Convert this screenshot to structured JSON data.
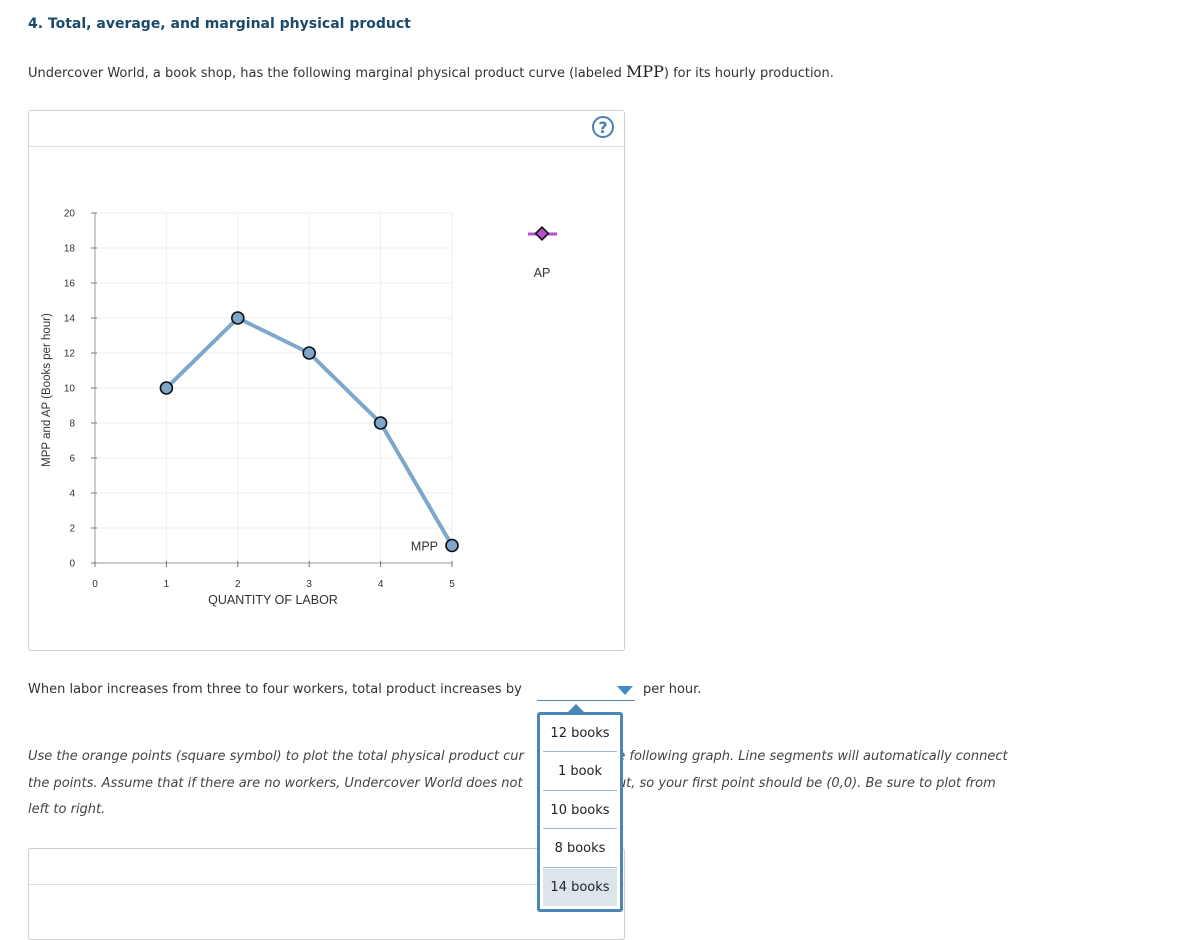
{
  "question": {
    "title": "4. Total, average, and marginal physical product",
    "intro_before": "Undercover World, a book shop, has the following marginal physical product curve (labeled ",
    "intro_symbol": "MPP",
    "intro_after": ") for its hourly production."
  },
  "graph": {
    "help_label": "?",
    "legend_label": "AP",
    "colors": {
      "mpp_line": "#7ea7cc",
      "mpp_point": "#7ea7cc",
      "ap_marker": "#b64fcf"
    }
  },
  "chart_data": {
    "type": "line",
    "xlabel": "QUANTITY OF LABOR",
    "ylabel": "MPP and AP (Books per hour)",
    "xlim": [
      0,
      5
    ],
    "ylim": [
      0,
      20
    ],
    "x_ticks": [
      "0",
      "1",
      "2",
      "3",
      "4",
      "5"
    ],
    "y_ticks": [
      "0",
      "2",
      "4",
      "6",
      "8",
      "10",
      "12",
      "14",
      "16",
      "18",
      "20"
    ],
    "grid": true,
    "series": [
      {
        "name": "MPP",
        "x": [
          1,
          2,
          3,
          4,
          5
        ],
        "y": [
          10,
          14,
          12,
          8,
          1
        ]
      }
    ]
  },
  "question_2": {
    "sentence": "When labor increases from three to four workers, total product increases by",
    "suffix": "per hour.",
    "dropdown_options": [
      "12 books",
      "1 book",
      "10 books",
      "8 books",
      "14 books"
    ]
  },
  "instructions": {
    "line1_a": "Use the orange points (square symbol) to plot the total physical product cur",
    "line1_b": "the following graph. Line segments will automatically connect",
    "line2_a": "the points. Assume that if there are no workers, Undercover World does not",
    "line2_b": "tput, so your first point should be (0,0). Be sure to plot from",
    "line3": "left to right."
  }
}
